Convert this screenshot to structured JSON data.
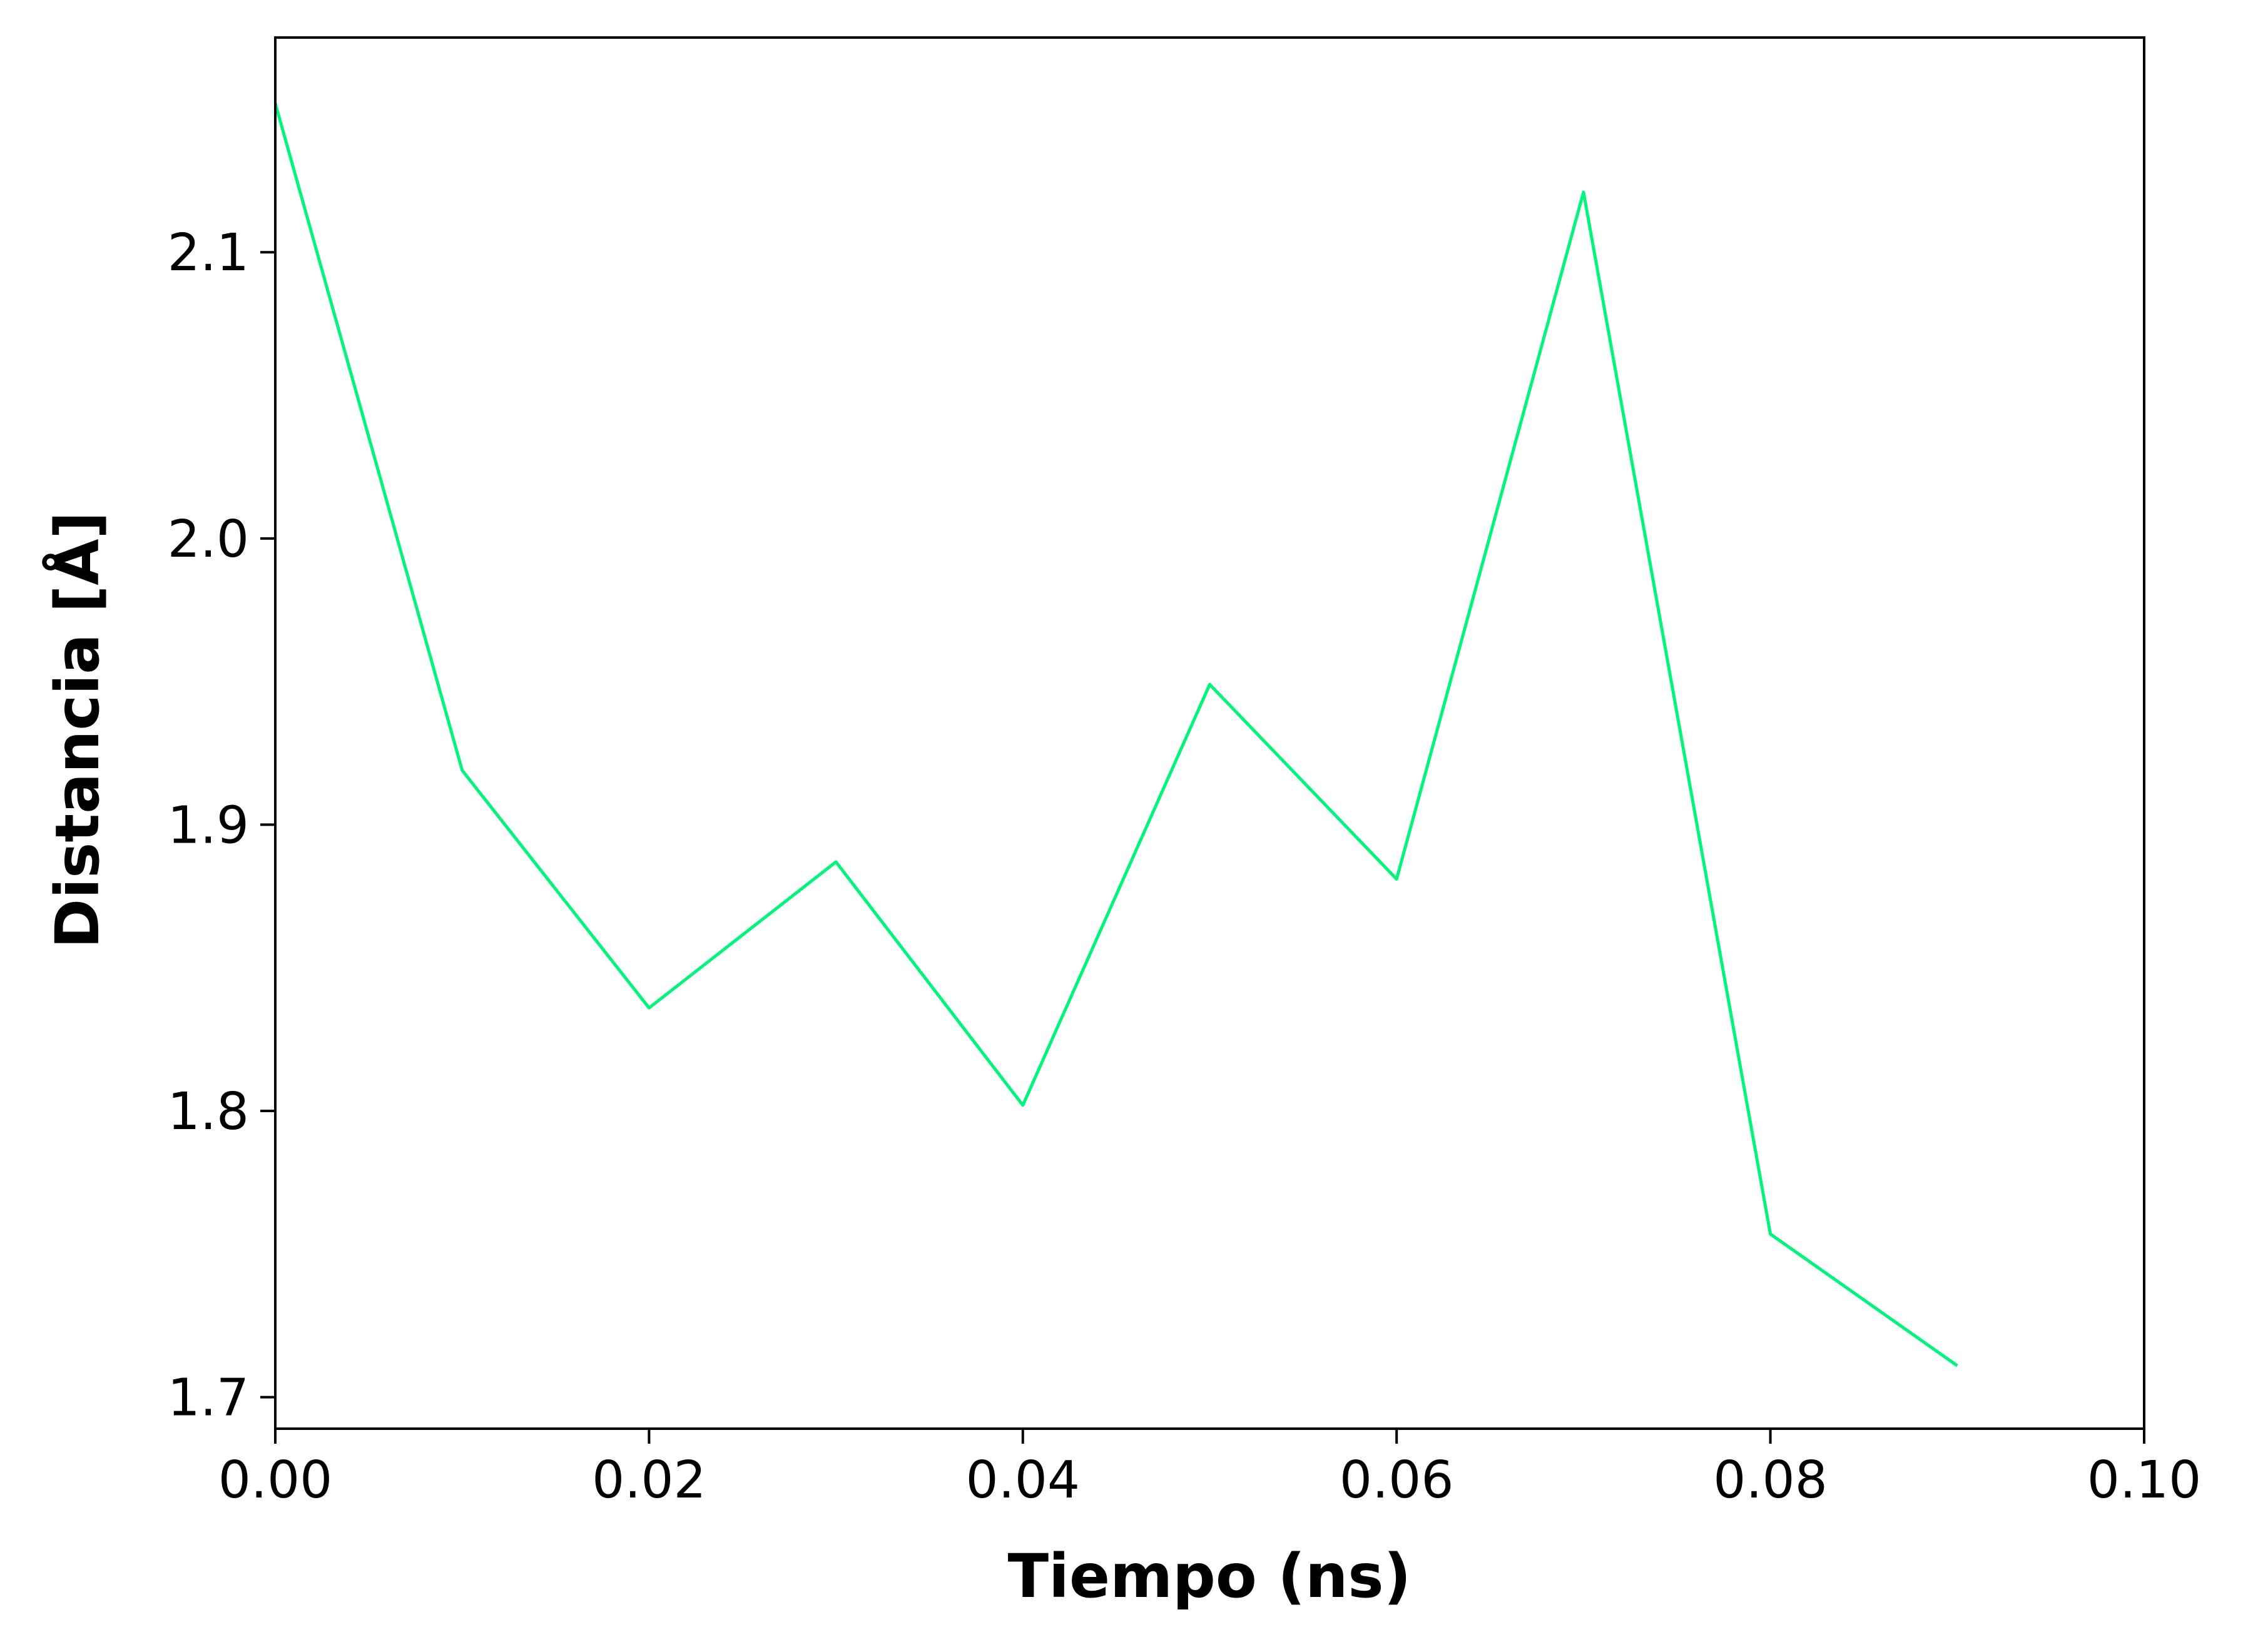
{
  "chart_data": {
    "type": "line",
    "title": "",
    "xlabel": "Tiempo (ns)",
    "ylabel": "Distancia [Å]",
    "xlim": [
      0.0,
      0.1
    ],
    "ylim": [
      1.689,
      2.175
    ],
    "xticks": [
      0.0,
      0.02,
      0.04,
      0.06,
      0.08,
      0.1
    ],
    "xtick_labels": [
      "0.00",
      "0.02",
      "0.04",
      "0.06",
      "0.08",
      "0.10"
    ],
    "yticks": [
      1.7,
      1.8,
      1.9,
      2.0,
      2.1
    ],
    "ytick_labels": [
      "1.7",
      "1.8",
      "1.9",
      "2.0",
      "2.1"
    ],
    "grid": false,
    "legend": "none",
    "series": [
      {
        "color": "#00f57a",
        "x": [
          0.0,
          0.01,
          0.02,
          0.03,
          0.04,
          0.05,
          0.06,
          0.07,
          0.08,
          0.09
        ],
        "y": [
          2.152,
          1.919,
          1.836,
          1.887,
          1.802,
          1.949,
          1.881,
          2.121,
          1.757,
          1.711
        ]
      }
    ]
  }
}
